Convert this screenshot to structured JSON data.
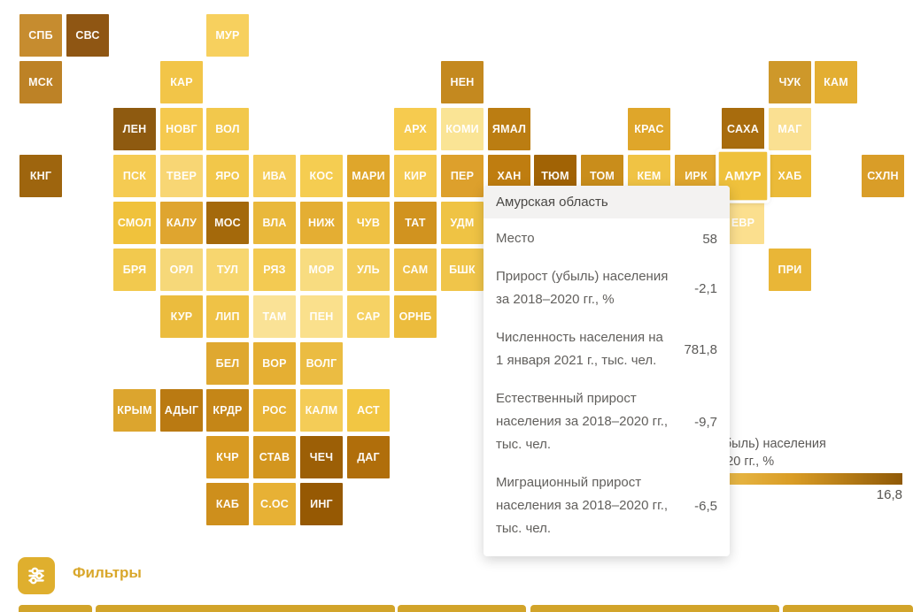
{
  "map": {
    "tiles": [
      {
        "label": "СПБ",
        "col": 0,
        "row": 0,
        "color": "#C68C2F"
      },
      {
        "label": "СВС",
        "col": 1,
        "row": 0,
        "color": "#8F5613"
      },
      {
        "label": "МУР",
        "col": 4,
        "row": 0,
        "color": "#F7D05E"
      },
      {
        "label": "МСК",
        "col": 0,
        "row": 1,
        "color": "#BD8226"
      },
      {
        "label": "КАР",
        "col": 3,
        "row": 1,
        "color": "#F2C548"
      },
      {
        "label": "НЕН",
        "col": 9,
        "row": 1,
        "color": "#C4891F"
      },
      {
        "label": "ЧУК",
        "col": 16,
        "row": 1,
        "color": "#CE982A"
      },
      {
        "label": "КАМ",
        "col": 17,
        "row": 1,
        "color": "#E3AE32"
      },
      {
        "label": "ЛЕН",
        "col": 2,
        "row": 2,
        "color": "#8E5A10"
      },
      {
        "label": "НОВГ",
        "col": 3,
        "row": 2,
        "color": "#F5C94E"
      },
      {
        "label": "ВОЛ",
        "col": 4,
        "row": 2,
        "color": "#F2C84C"
      },
      {
        "label": "АРХ",
        "col": 8,
        "row": 2,
        "color": "#F6CB4F"
      },
      {
        "label": "КОМИ",
        "col": 9,
        "row": 2,
        "color": "#FAE495"
      },
      {
        "label": "ЯМАЛ",
        "col": 10,
        "row": 2,
        "color": "#BB7D12"
      },
      {
        "label": "КРАС",
        "col": 13,
        "row": 2,
        "color": "#DFA62A"
      },
      {
        "label": "САХА",
        "col": 15,
        "row": 2,
        "color": "#A86C0D"
      },
      {
        "label": "МАГ",
        "col": 16,
        "row": 2,
        "color": "#FAE092"
      },
      {
        "label": "КНГ",
        "col": 0,
        "row": 3,
        "color": "#9E650E"
      },
      {
        "label": "ПСК",
        "col": 2,
        "row": 3,
        "color": "#F5CB52"
      },
      {
        "label": "ТВЕР",
        "col": 3,
        "row": 3,
        "color": "#F8D674"
      },
      {
        "label": "ЯРО",
        "col": 4,
        "row": 3,
        "color": "#F2C74A"
      },
      {
        "label": "ИВА",
        "col": 5,
        "row": 3,
        "color": "#F5CC57"
      },
      {
        "label": "КОС",
        "col": 6,
        "row": 3,
        "color": "#F5CD51"
      },
      {
        "label": "МАРИ",
        "col": 7,
        "row": 3,
        "color": "#DFA62B"
      },
      {
        "label": "КИР",
        "col": 8,
        "row": 3,
        "color": "#F4C94F"
      },
      {
        "label": "ПЕР",
        "col": 9,
        "row": 3,
        "color": "#DDA02C"
      },
      {
        "label": "ХАН",
        "col": 10,
        "row": 3,
        "color": "#BF7D10"
      },
      {
        "label": "ТЮМ",
        "col": 11,
        "row": 3,
        "color": "#A16305"
      },
      {
        "label": "ТОМ",
        "col": 12,
        "row": 3,
        "color": "#C98D1B"
      },
      {
        "label": "КЕМ",
        "col": 13,
        "row": 3,
        "color": "#F0C344"
      },
      {
        "label": "ИРК",
        "col": 14,
        "row": 3,
        "color": "#DFA62E"
      },
      {
        "label": "АМУР",
        "col": 15,
        "row": 3,
        "color": "#EFC13C",
        "highlight": true
      },
      {
        "label": "ХАБ",
        "col": 16,
        "row": 3,
        "color": "#EBBA38"
      },
      {
        "label": "СХЛН",
        "col": 18,
        "row": 3,
        "color": "#D99D28"
      },
      {
        "label": "СМОЛ",
        "col": 2,
        "row": 4,
        "color": "#F0C23C"
      },
      {
        "label": "КАЛУ",
        "col": 3,
        "row": 4,
        "color": "#DFA52F"
      },
      {
        "label": "МОС",
        "col": 4,
        "row": 4,
        "color": "#A4690B"
      },
      {
        "label": "ВЛА",
        "col": 5,
        "row": 4,
        "color": "#E9B83B"
      },
      {
        "label": "НИЖ",
        "col": 6,
        "row": 4,
        "color": "#E4AE33"
      },
      {
        "label": "ЧУВ",
        "col": 7,
        "row": 4,
        "color": "#EFC143"
      },
      {
        "label": "ТАТ",
        "col": 8,
        "row": 4,
        "color": "#D1931F"
      },
      {
        "label": "УДМ",
        "col": 9,
        "row": 4,
        "color": "#EFC344"
      },
      {
        "label": "ЕВР",
        "col": 15,
        "row": 4,
        "color": "#FBDF8E"
      },
      {
        "label": "БРЯ",
        "col": 2,
        "row": 5,
        "color": "#F2C94E"
      },
      {
        "label": "ОРЛ",
        "col": 3,
        "row": 5,
        "color": "#F6D879"
      },
      {
        "label": "ТУЛ",
        "col": 4,
        "row": 5,
        "color": "#F7D66F"
      },
      {
        "label": "РЯЗ",
        "col": 5,
        "row": 5,
        "color": "#F3CA52"
      },
      {
        "label": "МОР",
        "col": 6,
        "row": 5,
        "color": "#F8DC80"
      },
      {
        "label": "УЛЬ",
        "col": 7,
        "row": 5,
        "color": "#F3CC59"
      },
      {
        "label": "САМ",
        "col": 8,
        "row": 5,
        "color": "#EFC148"
      },
      {
        "label": "БШК",
        "col": 9,
        "row": 5,
        "color": "#F0C54A"
      },
      {
        "label": "ПРИ",
        "col": 16,
        "row": 5,
        "color": "#E9B637"
      },
      {
        "label": "КУР",
        "col": 3,
        "row": 6,
        "color": "#EBBC3E"
      },
      {
        "label": "ЛИП",
        "col": 4,
        "row": 6,
        "color": "#EFC246"
      },
      {
        "label": "ТАМ",
        "col": 5,
        "row": 6,
        "color": "#FAE296"
      },
      {
        "label": "ПЕН",
        "col": 6,
        "row": 6,
        "color": "#FAE08C"
      },
      {
        "label": "САР",
        "col": 7,
        "row": 6,
        "color": "#F6D264"
      },
      {
        "label": "ОРНБ",
        "col": 8,
        "row": 6,
        "color": "#ECBC3D"
      },
      {
        "label": "БЕЛ",
        "col": 4,
        "row": 7,
        "color": "#DFA830"
      },
      {
        "label": "ВОР",
        "col": 5,
        "row": 7,
        "color": "#E5AF33"
      },
      {
        "label": "ВОЛГ",
        "col": 6,
        "row": 7,
        "color": "#EBBC42"
      },
      {
        "label": "КРЫМ",
        "col": 2,
        "row": 8,
        "color": "#DCA52E"
      },
      {
        "label": "АДЫГ",
        "col": 3,
        "row": 8,
        "color": "#BA7A12"
      },
      {
        "label": "КРДР",
        "col": 4,
        "row": 8,
        "color": "#C58617"
      },
      {
        "label": "РОС",
        "col": 5,
        "row": 8,
        "color": "#E8B336"
      },
      {
        "label": "КАЛМ",
        "col": 6,
        "row": 8,
        "color": "#F4CC57"
      },
      {
        "label": "АСТ",
        "col": 7,
        "row": 8,
        "color": "#F2C643"
      },
      {
        "label": "КЧР",
        "col": 4,
        "row": 9,
        "color": "#D89A22"
      },
      {
        "label": "СТАВ",
        "col": 5,
        "row": 9,
        "color": "#D3961F"
      },
      {
        "label": "ЧЕЧ",
        "col": 6,
        "row": 9,
        "color": "#9C5F06"
      },
      {
        "label": "ДАГ",
        "col": 7,
        "row": 9,
        "color": "#B06E0B"
      },
      {
        "label": "КАБ",
        "col": 4,
        "row": 10,
        "color": "#CE8F1C"
      },
      {
        "label": "С.ОС",
        "col": 5,
        "row": 10,
        "color": "#E7B135"
      },
      {
        "label": "ИНГ",
        "col": 6,
        "row": 10,
        "color": "#965903"
      }
    ]
  },
  "tooltip": {
    "title": "Амурская область",
    "rows": [
      {
        "label": "Место",
        "value": "58"
      },
      {
        "label": "Прирост (убыль) населения за 2018–2020 гг., %",
        "value": "-2,1"
      },
      {
        "label": "Численность населения на 1 января 2021 г., тыс. чел.",
        "value": "781,8"
      },
      {
        "label": "Естественный прирост населения за 2018–2020 гг., тыс. чел.",
        "value": "-9,7"
      },
      {
        "label": "Миграционный прирост населения за 2018–2020 гг., тыс. чел.",
        "value": "-6,5"
      }
    ]
  },
  "legend": {
    "title_line1": "Прирост (убыль) населения",
    "title_line2": "за 2018–2020 гг., %",
    "max_label": "16,8",
    "gradient_start": "#F7D469",
    "gradient_mid": "#D99C25",
    "gradient_end": "#8F5907"
  },
  "filters": {
    "label": "Фильтры",
    "icon": "sliders-icon",
    "accent": "#DFAF2E",
    "label_color": "#D9A72B"
  },
  "bottom_bar": {
    "color": "#D2A42A",
    "segments": [
      [
        21,
        104
      ],
      [
        108,
        446
      ],
      [
        449,
        594
      ],
      [
        599,
        880
      ],
      [
        884,
        1031
      ]
    ]
  },
  "chart_data": {
    "type": "heatmap",
    "subtype": "tile-cartogram",
    "title": "Прирост (убыль) населения за 2018–2020 гг., %",
    "color_scale": {
      "min_color": "#F7D469",
      "max_color": "#8F5907",
      "max_tick": "16,8"
    },
    "regions": [
      "СПБ",
      "СВС",
      "МУР",
      "МСК",
      "КАР",
      "НЕН",
      "ЧУК",
      "КАМ",
      "ЛЕН",
      "НОВГ",
      "ВОЛ",
      "АРХ",
      "КОМИ",
      "ЯМАЛ",
      "КРАС",
      "САХА",
      "МАГ",
      "КНГ",
      "ПСК",
      "ТВЕР",
      "ЯРО",
      "ИВА",
      "КОС",
      "МАРИ",
      "КИР",
      "ПЕР",
      "ХАН",
      "ТЮМ",
      "ТОМ",
      "КЕМ",
      "ИРК",
      "АМУР",
      "ХАБ",
      "СХЛН",
      "СМОЛ",
      "КАЛУ",
      "МОС",
      "ВЛА",
      "НИЖ",
      "ЧУВ",
      "ТАТ",
      "УДМ",
      "ЕВР",
      "БРЯ",
      "ОРЛ",
      "ТУЛ",
      "РЯЗ",
      "МОР",
      "УЛЬ",
      "САМ",
      "БШК",
      "ПРИ",
      "КУР",
      "ЛИП",
      "ТАМ",
      "ПЕН",
      "САР",
      "ОРНБ",
      "БЕЛ",
      "ВОР",
      "ВОЛГ",
      "КРЫМ",
      "АДЫГ",
      "КРДР",
      "РОС",
      "КАЛМ",
      "АСТ",
      "КЧР",
      "СТАВ",
      "ЧЕЧ",
      "ДАГ",
      "КАБ",
      "С.ОС",
      "ИНГ"
    ],
    "selected_region": {
      "name": "Амурская область",
      "rank": 58,
      "population_growth_2018_2020_pct": -2.1,
      "population_2021_thousands": 781.8,
      "natural_growth_2018_2020_thousands": -9.7,
      "migration_growth_2018_2020_thousands": -6.5
    }
  }
}
